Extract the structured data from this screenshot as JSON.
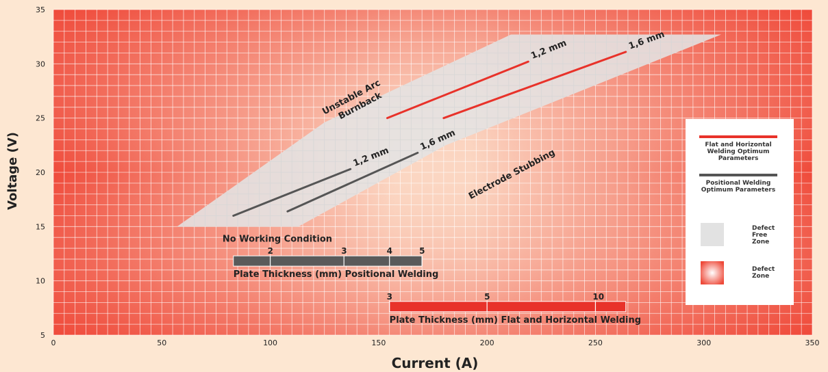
{
  "chart_data": {
    "type": "line",
    "title": "",
    "xlabel": "Current (A)",
    "ylabel": "Voltage (V)",
    "xlim": [
      0,
      350
    ],
    "ylim": [
      5,
      35
    ],
    "xticks": [
      0,
      50,
      100,
      150,
      200,
      250,
      300,
      350
    ],
    "yticks": [
      5,
      10,
      15,
      20,
      25,
      30,
      35
    ],
    "grid": true,
    "minor_grid_step": {
      "x": 5,
      "y": 1
    },
    "defect_free_zone": [
      [
        57,
        15
      ],
      [
        113,
        15
      ],
      [
        181,
        22.5
      ],
      [
        308,
        32.7
      ],
      [
        211,
        32.7
      ],
      [
        125,
        24.6
      ]
    ],
    "series": [
      {
        "name": "1,2 mm",
        "group": "Flat and Horizontal Welding Optimum Parameters",
        "color": "#e8322a",
        "x": [
          154,
          219
        ],
        "y": [
          25,
          30.2
        ]
      },
      {
        "name": "1,6 mm",
        "group": "Flat and Horizontal Welding Optimum Parameters",
        "color": "#e8322a",
        "x": [
          180,
          264
        ],
        "y": [
          25,
          31.1
        ]
      },
      {
        "name": "1,2 mm",
        "group": "Positional Welding Optimum Parameters",
        "color": "#555555",
        "x": [
          83,
          137
        ],
        "y": [
          16,
          20.3
        ]
      },
      {
        "name": "1,6 mm",
        "group": "Positional Welding Optimum Parameters",
        "color": "#555555",
        "x": [
          108,
          168
        ],
        "y": [
          16.4,
          21.8
        ]
      }
    ],
    "annotations": [
      {
        "text": "Unstable Arc",
        "x": 138,
        "y": 26.7,
        "rotate": -28
      },
      {
        "text": "Burnback",
        "x": 142,
        "y": 25.9,
        "rotate": -28
      },
      {
        "text": "Electrode Stubbing",
        "x": 212,
        "y": 19.6,
        "rotate": -28
      },
      {
        "text": "No Working Condition",
        "x": 78,
        "y": 13.6,
        "rotate": 0
      }
    ],
    "thickness_bars": [
      {
        "label": "Plate Thickness (mm) Positional Welding",
        "color": "#5a5a5a",
        "x_start": 83,
        "x_end": 170,
        "y": 12.3,
        "ticks": [
          {
            "label": "2",
            "x": 100
          },
          {
            "label": "3",
            "x": 134
          },
          {
            "label": "4",
            "x": 155
          },
          {
            "label": "5",
            "x": 170
          }
        ]
      },
      {
        "label": "Plate Thickness (mm) Flat and Horizontal Welding",
        "color": "#e8322a",
        "x_start": 155,
        "x_end": 264,
        "y": 8.1,
        "ticks": [
          {
            "label": "3",
            "x": 155
          },
          {
            "label": "5",
            "x": 200
          },
          {
            "label": "10",
            "x": 250
          }
        ]
      }
    ],
    "legend": {
      "placement": "right",
      "items": [
        {
          "label": "Flat and Horizontal Welding Optimum Parameters",
          "kind": "line",
          "color": "#e8322a"
        },
        {
          "label": "Positional Welding Optimum Parameters",
          "kind": "line",
          "color": "#555555"
        },
        {
          "label": "Defect Free Zone",
          "kind": "swatch",
          "color": "#e2e2e2"
        },
        {
          "label": "Defect Zone",
          "kind": "radial",
          "color": "#ee4a3a"
        }
      ]
    },
    "colors": {
      "defect_zone": "#ee4a3a",
      "defect_zone_center": "#ffffff",
      "defect_free": "#e4e4e4",
      "grid": "#ffffff"
    }
  }
}
